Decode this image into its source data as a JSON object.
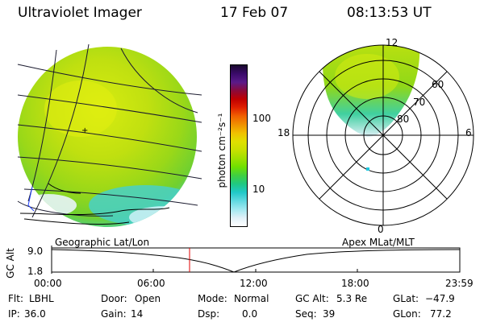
{
  "header": {
    "instrument": "Ultraviolet Imager",
    "date": "17 Feb 07",
    "time": "08:13:53 UT"
  },
  "colorbar": {
    "unit_label": "photon cm⁻²s⁻¹",
    "ticks": [
      "100",
      "10"
    ],
    "colors": [
      "#1a0a2e",
      "#3a0a6a",
      "#5a1a8a",
      "#8a0a3a",
      "#c00000",
      "#e02000",
      "#f06000",
      "#f09000",
      "#f0c000",
      "#e0e000",
      "#c8e000",
      "#a0e000",
      "#70e000",
      "#40d040",
      "#20c880",
      "#20c8c8",
      "#60d8e0",
      "#a0e8f0",
      "#e0f0f8",
      "#ffffff"
    ]
  },
  "maps": {
    "left_label": "Geographic Lat/Lon",
    "right_label": "Apex MLat/MLT"
  },
  "polar": {
    "mlt_labels": {
      "top": "12",
      "left": "18",
      "right": "6",
      "bottom": "0"
    },
    "lat_labels": [
      "60",
      "70",
      "80"
    ]
  },
  "altitude_plot": {
    "ylabel": "GC Alt",
    "y_ticks": [
      "9.0",
      "1.8"
    ],
    "x_ticks": [
      "00:00",
      "06:00",
      "12:00",
      "18:00",
      "23:59"
    ]
  },
  "status": {
    "row1": [
      {
        "label": "Flt:",
        "value": "LBHL"
      },
      {
        "label": "Door:",
        "value": "Open"
      },
      {
        "label": "Mode:",
        "value": "Normal"
      },
      {
        "label": "GC Alt:",
        "value": "5.3 Re"
      },
      {
        "label": "GLat:",
        "value": "−47.9"
      }
    ],
    "row2": [
      {
        "label": "IP:",
        "value": "36.0"
      },
      {
        "label": "Gain:",
        "value": "14"
      },
      {
        "label": "Dsp:",
        "value": "0.0"
      },
      {
        "label": "Seq:",
        "value": "39"
      },
      {
        "label": "GLon:",
        "value": "77.2"
      }
    ]
  }
}
